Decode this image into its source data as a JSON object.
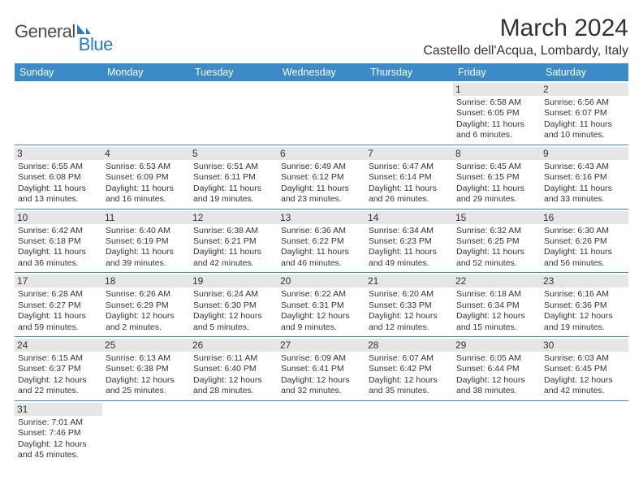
{
  "logo": {
    "general": "Genera",
    "l": "l",
    "blue": "Blue"
  },
  "title": "March 2024",
  "location": "Castello dell'Acqua, Lombardy, Italy",
  "colors": {
    "header_bg": "#3b8bc9",
    "header_fg": "#ffffff",
    "daynum_bg": "#e6e6e6",
    "border": "#3b8bc9",
    "logo_blue": "#2a7bbf"
  },
  "weekdays": [
    "Sunday",
    "Monday",
    "Tuesday",
    "Wednesday",
    "Thursday",
    "Friday",
    "Saturday"
  ],
  "weeks": [
    [
      {
        "n": "",
        "sr": "",
        "ss": "",
        "dl": ""
      },
      {
        "n": "",
        "sr": "",
        "ss": "",
        "dl": ""
      },
      {
        "n": "",
        "sr": "",
        "ss": "",
        "dl": ""
      },
      {
        "n": "",
        "sr": "",
        "ss": "",
        "dl": ""
      },
      {
        "n": "",
        "sr": "",
        "ss": "",
        "dl": ""
      },
      {
        "n": "1",
        "sr": "Sunrise: 6:58 AM",
        "ss": "Sunset: 6:05 PM",
        "dl": "Daylight: 11 hours and 6 minutes."
      },
      {
        "n": "2",
        "sr": "Sunrise: 6:56 AM",
        "ss": "Sunset: 6:07 PM",
        "dl": "Daylight: 11 hours and 10 minutes."
      }
    ],
    [
      {
        "n": "3",
        "sr": "Sunrise: 6:55 AM",
        "ss": "Sunset: 6:08 PM",
        "dl": "Daylight: 11 hours and 13 minutes."
      },
      {
        "n": "4",
        "sr": "Sunrise: 6:53 AM",
        "ss": "Sunset: 6:09 PM",
        "dl": "Daylight: 11 hours and 16 minutes."
      },
      {
        "n": "5",
        "sr": "Sunrise: 6:51 AM",
        "ss": "Sunset: 6:11 PM",
        "dl": "Daylight: 11 hours and 19 minutes."
      },
      {
        "n": "6",
        "sr": "Sunrise: 6:49 AM",
        "ss": "Sunset: 6:12 PM",
        "dl": "Daylight: 11 hours and 23 minutes."
      },
      {
        "n": "7",
        "sr": "Sunrise: 6:47 AM",
        "ss": "Sunset: 6:14 PM",
        "dl": "Daylight: 11 hours and 26 minutes."
      },
      {
        "n": "8",
        "sr": "Sunrise: 6:45 AM",
        "ss": "Sunset: 6:15 PM",
        "dl": "Daylight: 11 hours and 29 minutes."
      },
      {
        "n": "9",
        "sr": "Sunrise: 6:43 AM",
        "ss": "Sunset: 6:16 PM",
        "dl": "Daylight: 11 hours and 33 minutes."
      }
    ],
    [
      {
        "n": "10",
        "sr": "Sunrise: 6:42 AM",
        "ss": "Sunset: 6:18 PM",
        "dl": "Daylight: 11 hours and 36 minutes."
      },
      {
        "n": "11",
        "sr": "Sunrise: 6:40 AM",
        "ss": "Sunset: 6:19 PM",
        "dl": "Daylight: 11 hours and 39 minutes."
      },
      {
        "n": "12",
        "sr": "Sunrise: 6:38 AM",
        "ss": "Sunset: 6:21 PM",
        "dl": "Daylight: 11 hours and 42 minutes."
      },
      {
        "n": "13",
        "sr": "Sunrise: 6:36 AM",
        "ss": "Sunset: 6:22 PM",
        "dl": "Daylight: 11 hours and 46 minutes."
      },
      {
        "n": "14",
        "sr": "Sunrise: 6:34 AM",
        "ss": "Sunset: 6:23 PM",
        "dl": "Daylight: 11 hours and 49 minutes."
      },
      {
        "n": "15",
        "sr": "Sunrise: 6:32 AM",
        "ss": "Sunset: 6:25 PM",
        "dl": "Daylight: 11 hours and 52 minutes."
      },
      {
        "n": "16",
        "sr": "Sunrise: 6:30 AM",
        "ss": "Sunset: 6:26 PM",
        "dl": "Daylight: 11 hours and 56 minutes."
      }
    ],
    [
      {
        "n": "17",
        "sr": "Sunrise: 6:28 AM",
        "ss": "Sunset: 6:27 PM",
        "dl": "Daylight: 11 hours and 59 minutes."
      },
      {
        "n": "18",
        "sr": "Sunrise: 6:26 AM",
        "ss": "Sunset: 6:29 PM",
        "dl": "Daylight: 12 hours and 2 minutes."
      },
      {
        "n": "19",
        "sr": "Sunrise: 6:24 AM",
        "ss": "Sunset: 6:30 PM",
        "dl": "Daylight: 12 hours and 5 minutes."
      },
      {
        "n": "20",
        "sr": "Sunrise: 6:22 AM",
        "ss": "Sunset: 6:31 PM",
        "dl": "Daylight: 12 hours and 9 minutes."
      },
      {
        "n": "21",
        "sr": "Sunrise: 6:20 AM",
        "ss": "Sunset: 6:33 PM",
        "dl": "Daylight: 12 hours and 12 minutes."
      },
      {
        "n": "22",
        "sr": "Sunrise: 6:18 AM",
        "ss": "Sunset: 6:34 PM",
        "dl": "Daylight: 12 hours and 15 minutes."
      },
      {
        "n": "23",
        "sr": "Sunrise: 6:16 AM",
        "ss": "Sunset: 6:36 PM",
        "dl": "Daylight: 12 hours and 19 minutes."
      }
    ],
    [
      {
        "n": "24",
        "sr": "Sunrise: 6:15 AM",
        "ss": "Sunset: 6:37 PM",
        "dl": "Daylight: 12 hours and 22 minutes."
      },
      {
        "n": "25",
        "sr": "Sunrise: 6:13 AM",
        "ss": "Sunset: 6:38 PM",
        "dl": "Daylight: 12 hours and 25 minutes."
      },
      {
        "n": "26",
        "sr": "Sunrise: 6:11 AM",
        "ss": "Sunset: 6:40 PM",
        "dl": "Daylight: 12 hours and 28 minutes."
      },
      {
        "n": "27",
        "sr": "Sunrise: 6:09 AM",
        "ss": "Sunset: 6:41 PM",
        "dl": "Daylight: 12 hours and 32 minutes."
      },
      {
        "n": "28",
        "sr": "Sunrise: 6:07 AM",
        "ss": "Sunset: 6:42 PM",
        "dl": "Daylight: 12 hours and 35 minutes."
      },
      {
        "n": "29",
        "sr": "Sunrise: 6:05 AM",
        "ss": "Sunset: 6:44 PM",
        "dl": "Daylight: 12 hours and 38 minutes."
      },
      {
        "n": "30",
        "sr": "Sunrise: 6:03 AM",
        "ss": "Sunset: 6:45 PM",
        "dl": "Daylight: 12 hours and 42 minutes."
      }
    ],
    [
      {
        "n": "31",
        "sr": "Sunrise: 7:01 AM",
        "ss": "Sunset: 7:46 PM",
        "dl": "Daylight: 12 hours and 45 minutes."
      },
      {
        "n": "",
        "sr": "",
        "ss": "",
        "dl": ""
      },
      {
        "n": "",
        "sr": "",
        "ss": "",
        "dl": ""
      },
      {
        "n": "",
        "sr": "",
        "ss": "",
        "dl": ""
      },
      {
        "n": "",
        "sr": "",
        "ss": "",
        "dl": ""
      },
      {
        "n": "",
        "sr": "",
        "ss": "",
        "dl": ""
      },
      {
        "n": "",
        "sr": "",
        "ss": "",
        "dl": ""
      }
    ]
  ]
}
